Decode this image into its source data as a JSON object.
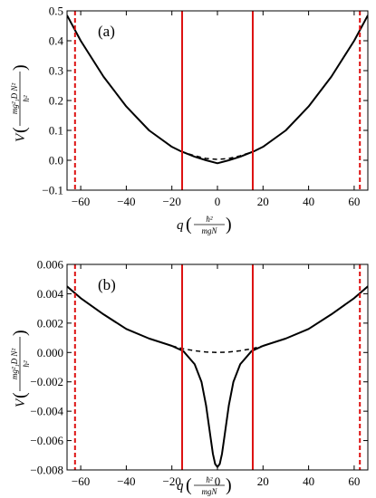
{
  "chart_data": [
    {
      "type": "line",
      "panel_label": "(a)",
      "xlim": [
        -66,
        66
      ],
      "ylim": [
        -0.1,
        0.5
      ],
      "x_ticks": [
        -60,
        -40,
        -20,
        0,
        20,
        40,
        60
      ],
      "x_tick_labels": [
        "−60",
        "−40",
        "−20",
        "0",
        "20",
        "40",
        "60"
      ],
      "y_ticks": [
        -0.1,
        0.0,
        0.1,
        0.2,
        0.3,
        0.4,
        0.5
      ],
      "y_tick_labels": [
        "−0.1",
        "0.0",
        "0.1",
        "0.2",
        "0.3",
        "0.4",
        "0.5"
      ],
      "xlabel": {
        "main": "q",
        "num": "ħ²",
        "den": "mgN"
      },
      "ylabel": {
        "main": "V",
        "num": "mg²₁D N²",
        "den": "ħ²"
      },
      "series": [
        {
          "style": "solid",
          "color": "#000000",
          "x": [
            -66,
            -60,
            -50,
            -40,
            -30,
            -20,
            -16,
            -10,
            -5,
            0,
            5,
            10,
            16,
            20,
            30,
            40,
            50,
            60,
            66
          ],
          "y": [
            0.485,
            0.4,
            0.28,
            0.18,
            0.1,
            0.045,
            0.03,
            0.012,
            0.0,
            -0.01,
            0.0,
            0.012,
            0.03,
            0.045,
            0.1,
            0.18,
            0.28,
            0.4,
            0.485
          ]
        },
        {
          "style": "dashed",
          "color": "#000000",
          "x": [
            -16,
            -10,
            -5,
            0,
            5,
            10,
            16
          ],
          "y": [
            0.03,
            0.015,
            0.006,
            0.003,
            0.006,
            0.015,
            0.03
          ]
        }
      ],
      "vlines": [
        {
          "x": -62.5,
          "style": "dashed",
          "color": "#dd1111"
        },
        {
          "x": -15.5,
          "style": "solid",
          "color": "#dd1111"
        },
        {
          "x": 15.5,
          "style": "solid",
          "color": "#dd1111"
        },
        {
          "x": 62.5,
          "style": "dashed",
          "color": "#dd1111"
        }
      ]
    },
    {
      "type": "line",
      "panel_label": "(b)",
      "xlim": [
        -66,
        66
      ],
      "ylim": [
        -0.008,
        0.006
      ],
      "x_ticks": [
        -60,
        -40,
        -20,
        0,
        20,
        40,
        60
      ],
      "x_tick_labels": [
        "−60",
        "−40",
        "−20",
        "0",
        "20",
        "40",
        "60"
      ],
      "y_ticks": [
        -0.008,
        -0.006,
        -0.004,
        -0.002,
        0.0,
        0.002,
        0.004,
        0.006
      ],
      "y_tick_labels": [
        "−0.008",
        "−0.006",
        "−0.004",
        "−0.002",
        "0.000",
        "0.002",
        "0.004",
        "0.006"
      ],
      "xlabel": {
        "main": "q",
        "num": "ħ²",
        "den": "mgN"
      },
      "ylabel": {
        "main": "V",
        "num": "mg²₁D N²",
        "den": "ħ²"
      },
      "series": [
        {
          "style": "solid",
          "color": "#000000",
          "x": [
            -66,
            -60,
            -50,
            -40,
            -30,
            -20,
            -15,
            -10,
            -7,
            -5,
            -3,
            -2,
            -1,
            0,
            1,
            2,
            3,
            5,
            7,
            10,
            15,
            20,
            30,
            40,
            50,
            60,
            66
          ],
          "y": [
            0.0045,
            0.0037,
            0.0026,
            0.0016,
            0.00095,
            0.00045,
            0.0001,
            -0.0008,
            -0.002,
            -0.0036,
            -0.0058,
            -0.0069,
            -0.0076,
            -0.0078,
            -0.0076,
            -0.0069,
            -0.0058,
            -0.0036,
            -0.002,
            -0.0008,
            0.0001,
            0.00045,
            0.00095,
            0.0016,
            0.0026,
            0.0037,
            0.0045
          ]
        },
        {
          "style": "dashed",
          "color": "#000000",
          "x": [
            -20,
            -15,
            -10,
            -5,
            0,
            5,
            10,
            15,
            20
          ],
          "y": [
            0.00045,
            0.00025,
            0.00012,
            3e-05,
            0.0,
            3e-05,
            0.00012,
            0.00025,
            0.00045
          ]
        }
      ],
      "vlines": [
        {
          "x": -62.5,
          "style": "dashed",
          "color": "#dd1111"
        },
        {
          "x": -15.5,
          "style": "solid",
          "color": "#dd1111"
        },
        {
          "x": 15.5,
          "style": "solid",
          "color": "#dd1111"
        },
        {
          "x": 62.5,
          "style": "dashed",
          "color": "#dd1111"
        }
      ]
    }
  ]
}
